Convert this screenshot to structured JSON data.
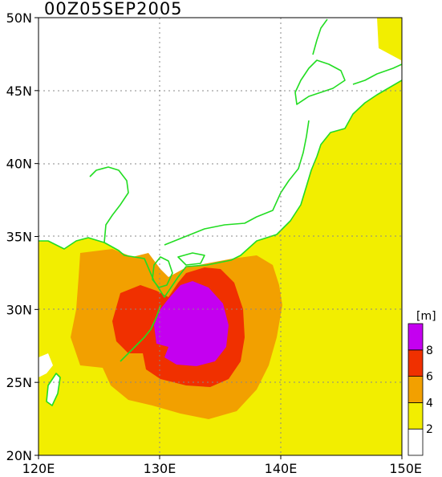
{
  "title": "00Z05SEP2005",
  "map": {
    "lon_range": [
      120,
      150
    ],
    "lat_range": [
      20,
      50
    ],
    "lon_ticks": [
      {
        "value": 120,
        "label": "120E"
      },
      {
        "value": 130,
        "label": "130E"
      },
      {
        "value": 140,
        "label": "140E"
      },
      {
        "value": 150,
        "label": "150E"
      }
    ],
    "lat_ticks": [
      {
        "value": 20,
        "label": "20N"
      },
      {
        "value": 25,
        "label": "25N"
      },
      {
        "value": 30,
        "label": "30N"
      },
      {
        "value": 35,
        "label": "35N"
      },
      {
        "value": 40,
        "label": "40N"
      },
      {
        "value": 45,
        "label": "45N"
      },
      {
        "value": 50,
        "label": "50N"
      }
    ],
    "gridlines": "dotted",
    "land_color": "#ffffff",
    "coastline_color": "#22dd22"
  },
  "colorbar": {
    "unit": "[m]",
    "placement": "right",
    "bins": [
      {
        "min": 0,
        "max": 2,
        "color": "#ffffff"
      },
      {
        "min": 2,
        "max": 4,
        "color": "#f2ee00"
      },
      {
        "min": 4,
        "max": 6,
        "color": "#f2a000"
      },
      {
        "min": 6,
        "max": 8,
        "color": "#f03000"
      },
      {
        "min": 8,
        "max": 10,
        "color": "#c400f0"
      }
    ],
    "labels": [
      "2",
      "4",
      "6",
      "8"
    ]
  }
}
